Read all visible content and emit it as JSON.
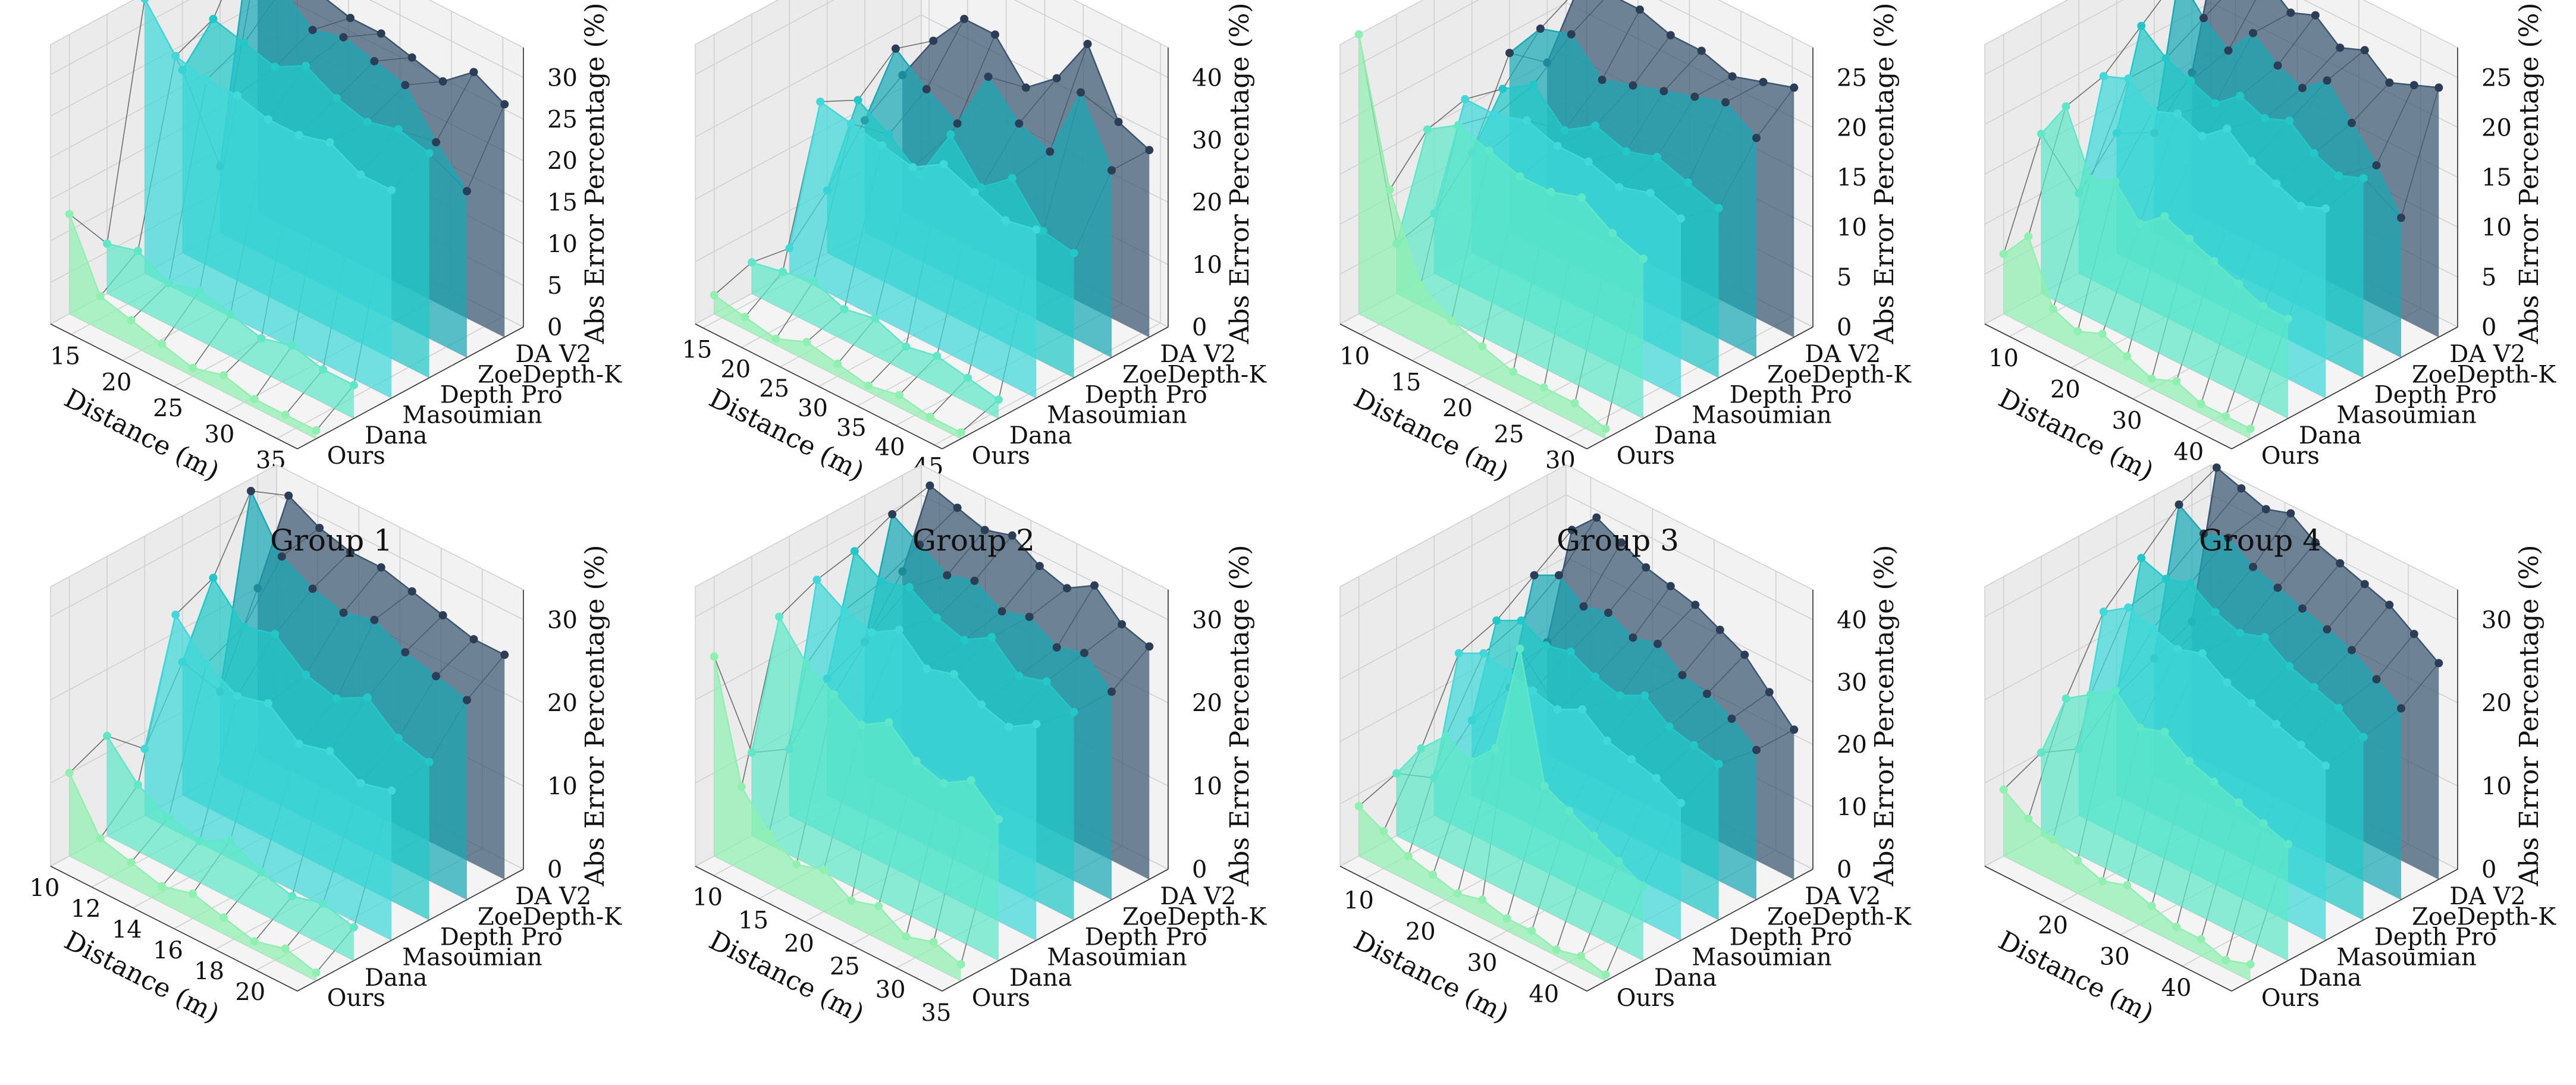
{
  "figure": {
    "captions": [
      "Group 1",
      "Group 2",
      "Group 3",
      "Group 4"
    ]
  },
  "colors": {
    "Ours": "#90f0b0",
    "Dana": "#5fe8c8",
    "Masoumian": "#40d8d8",
    "Depth Pro": "#22c8c8",
    "ZoeDepth-K": "#1aa8b4",
    "DA V2": "#3a5670",
    "marker_far": "#2c3e55",
    "connector": "#444444",
    "pane": "#f2f2f2",
    "grid": "#d0d0d0"
  },
  "chart_data": [
    {
      "type": "area3d",
      "caption": "Group 1",
      "xlabel": "Distance (m)",
      "zlabel": "Abs Error Percentage (%)",
      "methods": [
        "Ours",
        "Dana",
        "Masoumian",
        "Depth Pro",
        "ZoeDepth-K",
        "DA V2"
      ],
      "x_ticks": [
        15,
        20,
        25,
        30,
        35
      ],
      "z_ticks": [
        0,
        5,
        10,
        15,
        20,
        25,
        30
      ],
      "x": [
        13,
        16,
        19,
        22,
        25,
        28,
        31,
        34,
        37
      ],
      "series": [
        {
          "name": "Ours",
          "values": [
            12,
            4,
            3,
            2,
            1,
            2,
            1,
            1,
            1
          ]
        },
        {
          "name": "Dana",
          "values": [
            6,
            7,
            5,
            6,
            5,
            4,
            5,
            4,
            4
          ]
        },
        {
          "name": "Masoumian",
          "values": [
            33,
            28,
            27,
            27,
            26,
            26,
            27,
            25,
            25
          ]
        },
        {
          "name": "Depth Pro",
          "values": [
            22,
            30,
            29,
            28,
            30,
            28,
            27,
            28,
            27
          ]
        },
        {
          "name": "ZoeDepth-K",
          "values": [
            8,
            38,
            33,
            30,
            31,
            30,
            29,
            24,
            20
          ]
        },
        {
          "name": "DA V2",
          "values": [
            31,
            33,
            30,
            29,
            29,
            28,
            27,
            30,
            28
          ]
        }
      ]
    },
    {
      "type": "area3d",
      "caption": "Group 2",
      "xlabel": "Distance (m)",
      "zlabel": "Abs Error Percentage (%)",
      "methods": [
        "Ours",
        "Dana",
        "Masoumian",
        "Depth Pro",
        "ZoeDepth-K",
        "DA V2"
      ],
      "x_ticks": [
        15,
        20,
        25,
        30,
        35,
        40,
        45
      ],
      "z_ticks": [
        0,
        10,
        20,
        30,
        40
      ],
      "x": [
        14,
        18,
        22,
        26,
        30,
        34,
        38,
        42,
        46
      ],
      "series": [
        {
          "name": "Ours",
          "values": [
            3,
            2,
            1,
            3,
            2,
            1,
            2,
            1,
            1
          ]
        },
        {
          "name": "Dana",
          "values": [
            5,
            6,
            7,
            5,
            6,
            4,
            5,
            4,
            3
          ]
        },
        {
          "name": "Masoumian",
          "values": [
            4,
            30,
            29,
            28,
            27,
            30,
            28,
            26,
            27
          ]
        },
        {
          "name": "Depth Pro",
          "values": [
            10,
            27,
            24,
            20,
            29,
            23,
            27,
            21,
            20
          ]
        },
        {
          "name": "ZoeDepth-K",
          "values": [
            18,
            32,
            28,
            25,
            35,
            30,
            28,
            40,
            30
          ]
        },
        {
          "name": "DA V2",
          "values": [
            22,
            30,
            36,
            36,
            30,
            34,
            42,
            32,
            30
          ]
        }
      ]
    },
    {
      "type": "area3d",
      "caption": "Group 3",
      "xlabel": "Distance (m)",
      "zlabel": "Abs Error Percentage (%)",
      "methods": [
        "Ours",
        "Dana",
        "Masoumian",
        "Depth Pro",
        "ZoeDepth-K",
        "DA V2"
      ],
      "x_ticks": [
        10,
        15,
        20,
        25,
        30
      ],
      "z_ticks": [
        0,
        5,
        10,
        15,
        20,
        25
      ],
      "x": [
        8,
        11,
        14,
        17,
        20,
        23,
        26,
        29,
        32
      ],
      "series": [
        {
          "name": "Ours",
          "values": [
            28,
            14,
            6,
            4,
            3,
            2,
            2,
            2,
            1
          ]
        },
        {
          "name": "Dana",
          "values": [
            5,
            18,
            20,
            19,
            18,
            18,
            19,
            17,
            16
          ]
        },
        {
          "name": "Masoumian",
          "values": [
            6,
            19,
            19,
            20,
            19,
            19,
            18,
            19,
            18
          ]
        },
        {
          "name": "Depth Pro",
          "values": [
            10,
            18,
            20,
            17,
            19,
            18,
            19,
            18,
            17
          ]
        },
        {
          "name": "ZoeDepth-K",
          "values": [
            18,
            22,
            23,
            20,
            21,
            22,
            23,
            24,
            22
          ]
        },
        {
          "name": "DA V2",
          "values": [
            15,
            24,
            25,
            25,
            24,
            24,
            23,
            24,
            25
          ]
        }
      ]
    },
    {
      "type": "area3d",
      "caption": "Group 4",
      "xlabel": "Distance (m)",
      "zlabel": "Abs Error Percentage (%)",
      "methods": [
        "Ours",
        "Dana",
        "Masoumian",
        "Depth Pro",
        "ZoeDepth-K",
        "DA V2"
      ],
      "x_ticks": [
        10,
        20,
        30,
        40
      ],
      "z_ticks": [
        0,
        5,
        10,
        15,
        20,
        25
      ],
      "x": [
        6,
        10,
        14,
        18,
        22,
        26,
        30,
        34,
        38,
        42,
        46
      ],
      "series": [
        {
          "name": "Ours",
          "values": [
            6,
            9,
            3,
            2,
            3,
            2,
            1,
            2,
            1,
            1,
            1
          ]
        },
        {
          "name": "Dana",
          "values": [
            16,
            20,
            14,
            15,
            12,
            14,
            13,
            12,
            11,
            10,
            10
          ]
        },
        {
          "name": "Masoumian",
          "values": [
            8,
            21,
            22,
            20,
            21,
            20,
            22,
            20,
            19,
            18,
            19
          ]
        },
        {
          "name": "Depth Pro",
          "values": [
            12,
            24,
            22,
            21,
            20,
            22,
            21,
            22,
            20,
            19,
            20
          ]
        },
        {
          "name": "ZoeDepth-K",
          "values": [
            10,
            27,
            24,
            22,
            25,
            23,
            22,
            24,
            21,
            18,
            14
          ]
        },
        {
          "name": "DA V2",
          "values": [
            14,
            28,
            26,
            27,
            25,
            26,
            24,
            25,
            23,
            24,
            25
          ]
        }
      ]
    },
    {
      "type": "area3d",
      "caption": "",
      "xlabel": "Distance (m)",
      "zlabel": "Abs Error Percentage (%)",
      "methods": [
        "Ours",
        "Dana",
        "Masoumian",
        "Depth Pro",
        "ZoeDepth-K",
        "DA V2"
      ],
      "x_ticks": [
        10,
        12,
        14,
        16,
        18,
        20
      ],
      "z_ticks": [
        0,
        10,
        20,
        30
      ],
      "x": [
        10,
        11.5,
        13,
        14.5,
        16,
        17.5,
        19,
        20.5,
        22
      ],
      "series": [
        {
          "name": "Ours",
          "values": [
            10,
            4,
            3,
            2,
            3,
            2,
            1,
            2,
            1
          ]
        },
        {
          "name": "Dana",
          "values": [
            12,
            8,
            6,
            5,
            7,
            5,
            4,
            5,
            4
          ]
        },
        {
          "name": "Masoumian",
          "values": [
            8,
            26,
            22,
            20,
            21,
            18,
            19,
            17,
            18
          ]
        },
        {
          "name": "Depth Pro",
          "values": [
            16,
            28,
            24,
            25,
            22,
            21,
            23,
            20,
            19
          ]
        },
        {
          "name": "ZoeDepth-K",
          "values": [
            10,
            36,
            30,
            28,
            27,
            28,
            26,
            25,
            24
          ]
        },
        {
          "name": "DA V2",
          "values": [
            20,
            33,
            31,
            30,
            30,
            29,
            28,
            27,
            27
          ]
        }
      ]
    },
    {
      "type": "area3d",
      "caption": "",
      "xlabel": "Distance (m)",
      "zlabel": "Abs Error Percentage (%)",
      "methods": [
        "Ours",
        "Dana",
        "Masoumian",
        "Depth Pro",
        "ZoeDepth-K",
        "DA V2"
      ],
      "x_ticks": [
        10,
        15,
        20,
        25,
        30,
        35
      ],
      "z_ticks": [
        0,
        10,
        20,
        30
      ],
      "x": [
        8,
        11,
        14,
        17,
        20,
        23,
        26,
        29,
        32,
        35
      ],
      "series": [
        {
          "name": "Ours",
          "values": [
            24,
            10,
            6,
            4,
            5,
            3,
            4,
            2,
            3,
            2
          ]
        },
        {
          "name": "Dana",
          "values": [
            10,
            28,
            24,
            22,
            20,
            22,
            19,
            18,
            20,
            17
          ]
        },
        {
          "name": "Masoumian",
          "values": [
            8,
            30,
            28,
            27,
            29,
            26,
            27,
            25,
            24,
            26
          ]
        },
        {
          "name": "Depth Pro",
          "values": [
            14,
            31,
            29,
            30,
            28,
            27,
            29,
            26,
            27,
            25
          ]
        },
        {
          "name": "ZoeDepth-K",
          "values": [
            16,
            33,
            31,
            29,
            30,
            28,
            29,
            27,
            28,
            25
          ]
        },
        {
          "name": "DA V2",
          "values": [
            22,
            34,
            33,
            32,
            33,
            31,
            30,
            32,
            29,
            28
          ]
        }
      ]
    },
    {
      "type": "area3d",
      "caption": "",
      "xlabel": "Distance (m)",
      "zlabel": "Abs Error Percentage (%)",
      "methods": [
        "Ours",
        "Dana",
        "Masoumian",
        "Depth Pro",
        "ZoeDepth-K",
        "DA V2"
      ],
      "x_ticks": [
        10,
        20,
        30,
        40
      ],
      "z_ticks": [
        0,
        10,
        20,
        30,
        40
      ],
      "x": [
        6,
        10,
        14,
        18,
        22,
        26,
        30,
        34,
        38,
        42,
        46
      ],
      "series": [
        {
          "name": "Ours",
          "values": [
            8,
            6,
            4,
            3,
            2,
            3,
            2,
            2,
            1,
            2,
            1
          ]
        },
        {
          "name": "Dana",
          "values": [
            10,
            16,
            20,
            18,
            22,
            40,
            20,
            18,
            16,
            14,
            12
          ]
        },
        {
          "name": "Masoumian",
          "values": [
            6,
            28,
            30,
            29,
            28,
            27,
            29,
            26,
            25,
            24,
            22
          ]
        },
        {
          "name": "Depth Pro",
          "values": [
            12,
            30,
            32,
            30,
            31,
            29,
            28,
            30,
            27,
            26,
            25
          ]
        },
        {
          "name": "ZoeDepth-K",
          "values": [
            14,
            34,
            36,
            33,
            34,
            32,
            33,
            30,
            29,
            27,
            24
          ]
        },
        {
          "name": "DA V2",
          "values": [
            18,
            38,
            42,
            40,
            38,
            37,
            36,
            34,
            32,
            28,
            24
          ]
        }
      ]
    },
    {
      "type": "area3d",
      "caption": "",
      "xlabel": "Distance (m)",
      "zlabel": "Abs Error Percentage (%)",
      "methods": [
        "Ours",
        "Dana",
        "Masoumian",
        "Depth Pro",
        "ZoeDepth-K",
        "DA V2"
      ],
      "x_ticks": [
        20,
        30,
        40
      ],
      "z_ticks": [
        0,
        10,
        20,
        30
      ],
      "x": [
        8,
        12,
        16,
        20,
        24,
        28,
        32,
        36,
        40,
        44,
        48
      ],
      "series": [
        {
          "name": "Ours",
          "values": [
            8,
            6,
            5,
            4,
            3,
            4,
            3,
            2,
            2,
            1,
            2
          ]
        },
        {
          "name": "Dana",
          "values": [
            10,
            18,
            20,
            22,
            19,
            20,
            18,
            17,
            16,
            15,
            14
          ]
        },
        {
          "name": "Masoumian",
          "values": [
            8,
            26,
            28,
            27,
            26,
            27,
            25,
            24,
            23,
            22,
            21
          ]
        },
        {
          "name": "Depth Pro",
          "values": [
            12,
            30,
            29,
            30,
            28,
            27,
            28,
            26,
            25,
            24,
            22
          ]
        },
        {
          "name": "ZoeDepth-K",
          "values": [
            14,
            34,
            32,
            33,
            31,
            30,
            29,
            28,
            27,
            25,
            23
          ]
        },
        {
          "name": "DA V2",
          "values": [
            16,
            36,
            35,
            34,
            35,
            33,
            32,
            31,
            30,
            28,
            26
          ]
        }
      ]
    }
  ]
}
